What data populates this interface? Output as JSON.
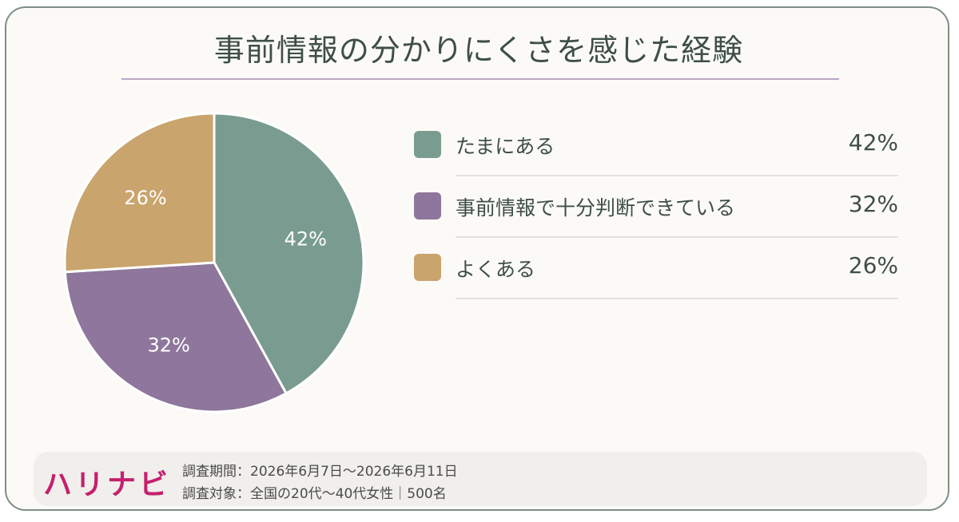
{
  "chart_data": {
    "type": "pie",
    "title": "事前情報の分かりにくさを感じた経験",
    "slices": [
      {
        "label": "たまにある",
        "value": 42,
        "value_label": "42%",
        "color": "#7a9c90"
      },
      {
        "label": "事前情報で十分判断できている",
        "value": 32,
        "value_label": "32%",
        "color": "#8e769c"
      },
      {
        "label": "よくある",
        "value": 26,
        "value_label": "26%",
        "color": "#c9a46c"
      }
    ],
    "legend_placement": "right"
  },
  "footer": {
    "logo": "ハリナビ",
    "survey_period": "調査期間：2026年6月7日〜2026年6月11日",
    "survey_target": "調査対象：全国の20代〜40代女性｜500名"
  },
  "colors": {
    "border": "#7e8f86",
    "title_text": "#3e4f47",
    "title_rule": "#b9a6c4",
    "logo": "#c4216c"
  }
}
